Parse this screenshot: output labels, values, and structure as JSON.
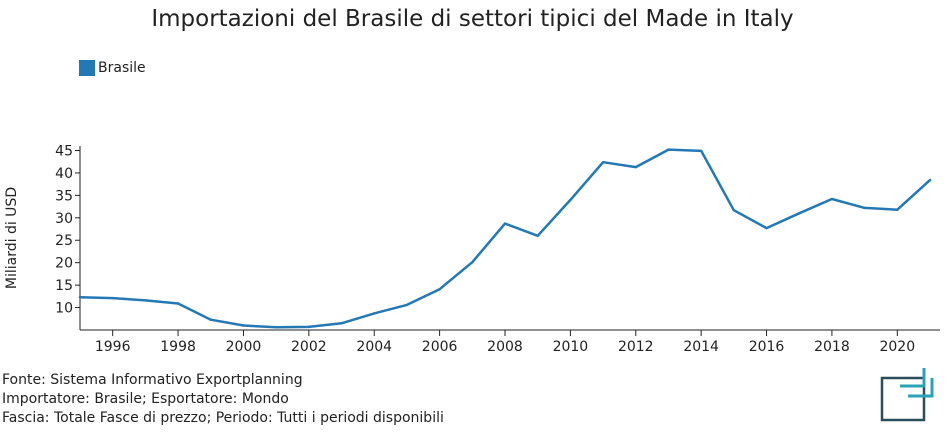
{
  "chart_data": {
    "type": "line",
    "title": "Importazioni del Brasile di settori tipici del Made in Italy",
    "ylabel": "Miliardi di USD",
    "xlabel": "",
    "xlim": [
      1995,
      2021
    ],
    "ylim": [
      5,
      46
    ],
    "x_ticks": [
      1996,
      1998,
      2000,
      2002,
      2004,
      2006,
      2008,
      2010,
      2012,
      2014,
      2016,
      2018,
      2020
    ],
    "y_ticks": [
      10,
      15,
      20,
      25,
      30,
      35,
      40,
      45
    ],
    "x_tick_labels": [
      "1996",
      "1998",
      "2000",
      "2002",
      "2004",
      "2006",
      "2008",
      "2010",
      "2012",
      "2014",
      "2016",
      "2018",
      "2020"
    ],
    "y_tick_labels": [
      "10",
      "15",
      "20",
      "25",
      "30",
      "35",
      "40",
      "45"
    ],
    "legend_position": "top-left",
    "grid": false,
    "x": [
      1995,
      1996,
      1997,
      1998,
      1999,
      2000,
      2001,
      2002,
      2003,
      2004,
      2005,
      2006,
      2007,
      2008,
      2009,
      2010,
      2011,
      2012,
      2013,
      2014,
      2015,
      2016,
      2017,
      2018,
      2019,
      2020,
      2021
    ],
    "series": [
      {
        "name": "Brasile",
        "color": "#2478b4",
        "values": [
          12.3,
          12.1,
          11.6,
          10.9,
          7.3,
          6.0,
          5.6,
          5.7,
          6.5,
          8.7,
          10.6,
          14.1,
          20.1,
          28.7,
          26.0,
          34.0,
          42.4,
          41.3,
          45.2,
          44.9,
          31.7,
          27.7,
          31.0,
          34.2,
          32.2,
          31.8,
          38.4
        ]
      }
    ]
  },
  "footer": {
    "line1": "Fonte: Sistema Informativo Exportplanning",
    "line2": "Importatore: Brasile; Esportatore: Mondo",
    "line3": "Fascia: Totale Fasce di prezzo; Periodo: Tutti i periodi disponibili"
  },
  "logo": {
    "icon": "exportplanning-logo-icon",
    "colors": [
      "#2a4d5c",
      "#2aa3b5"
    ]
  }
}
